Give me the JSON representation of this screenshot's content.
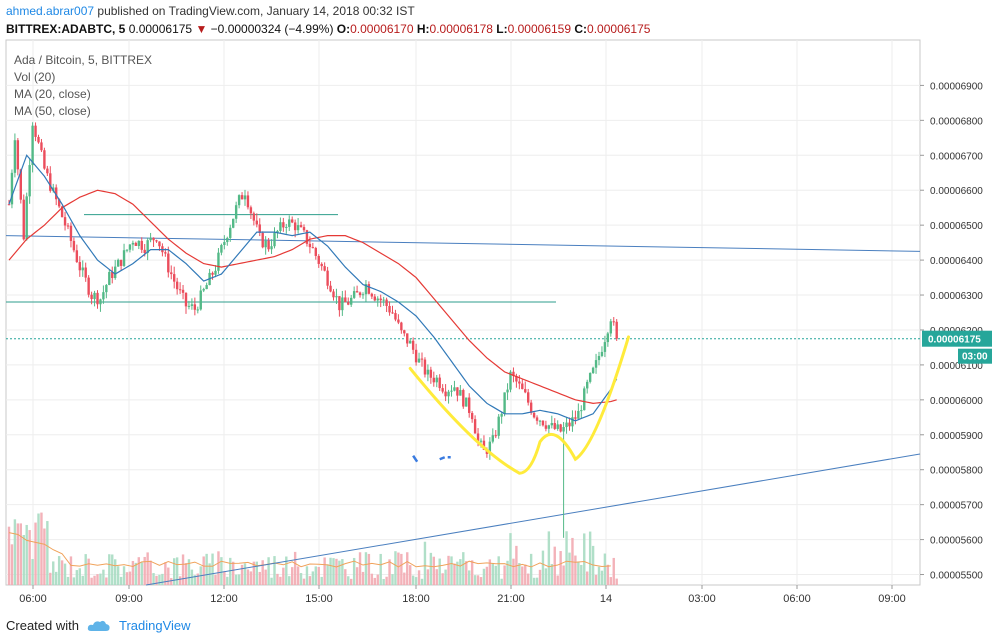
{
  "header": {
    "author": "ahmed.abrar007",
    "published_text": "published on TradingView.com, January 14, 2018 00:32 IST",
    "symbol_line": "BITTREX:ADABTC, 5",
    "last": "0.00006175",
    "change": "−0.00000324 (−4.99%)",
    "open_label": "O:",
    "open": "0.00006170",
    "high_label": "H:",
    "high": "0.00006178",
    "low_label": "L:",
    "low": "0.00006159",
    "close_label": "C:",
    "close": "0.00006175"
  },
  "legend": {
    "title": "Ada / Bitcoin, 5, BITTREX",
    "vol": "Vol (20)",
    "ma20": "MA (20, close)",
    "ma50": "MA (50, close)"
  },
  "footer": {
    "created_with": "Created with",
    "brand": "TradingView"
  },
  "colors": {
    "up": "#53b987",
    "down": "#eb4d5c",
    "ma20": "#3179b8",
    "ma50": "#e53935",
    "annotation": "#ffeb3b",
    "trend": "#4a7fbf",
    "hline": "#2e9e8c",
    "price_tag": "#26a69a"
  },
  "chart_data": {
    "type": "candlestick",
    "y_axis": {
      "ticks": [
        "0.00006900",
        "0.00006800",
        "0.00006700",
        "0.00006600",
        "0.00006500",
        "0.00006400",
        "0.00006300",
        "0.00006200",
        "0.00006100",
        "0.00006000",
        "0.00005900",
        "0.00005800",
        "0.00005700",
        "0.00005600",
        "0.00005500"
      ],
      "range": [
        5.47e-05,
        7.03e-05
      ]
    },
    "x_axis": {
      "ticks": [
        "06:00",
        "09:00",
        "12:00",
        "15:00",
        "18:00",
        "21:00",
        "14",
        "03:00",
        "06:00",
        "09:00"
      ]
    },
    "last_price_label": "0.00006175",
    "countdown_label": "03:00",
    "price_path": [
      [
        0,
        6560
      ],
      [
        2,
        6760
      ],
      [
        5,
        6470
      ],
      [
        8,
        6800
      ],
      [
        12,
        6660
      ],
      [
        16,
        6570
      ],
      [
        20,
        6480
      ],
      [
        24,
        6380
      ],
      [
        28,
        6300
      ],
      [
        31,
        6290
      ],
      [
        34,
        6350
      ],
      [
        38,
        6400
      ],
      [
        42,
        6460
      ],
      [
        46,
        6440
      ],
      [
        50,
        6470
      ],
      [
        54,
        6380
      ],
      [
        57,
        6320
      ],
      [
        60,
        6270
      ],
      [
        63,
        6260
      ],
      [
        66,
        6310
      ],
      [
        70,
        6380
      ],
      [
        74,
        6480
      ],
      [
        78,
        6570
      ],
      [
        80,
        6600
      ],
      [
        82,
        6540
      ],
      [
        85,
        6460
      ],
      [
        88,
        6440
      ],
      [
        91,
        6480
      ],
      [
        94,
        6510
      ],
      [
        97,
        6500
      ],
      [
        100,
        6470
      ],
      [
        103,
        6430
      ],
      [
        106,
        6380
      ],
      [
        109,
        6330
      ],
      [
        112,
        6270
      ],
      [
        115,
        6280
      ],
      [
        118,
        6300
      ],
      [
        121,
        6330
      ],
      [
        124,
        6300
      ],
      [
        127,
        6280
      ],
      [
        130,
        6250
      ],
      [
        133,
        6190
      ],
      [
        136,
        6160
      ],
      [
        139,
        6110
      ],
      [
        142,
        6070
      ],
      [
        145,
        6060
      ],
      [
        148,
        6030
      ],
      [
        151,
        6040
      ],
      [
        154,
        6000
      ],
      [
        157,
        5960
      ],
      [
        159,
        5880
      ],
      [
        161,
        5850
      ],
      [
        164,
        5880
      ],
      [
        167,
        5970
      ],
      [
        170,
        6070
      ],
      [
        172,
        6050
      ],
      [
        175,
        6010
      ],
      [
        178,
        5960
      ],
      [
        181,
        5940
      ],
      [
        184,
        5920
      ],
      [
        187,
        5910
      ],
      [
        190,
        5930
      ],
      [
        193,
        5960
      ],
      [
        196,
        6040
      ],
      [
        199,
        6100
      ],
      [
        202,
        6180
      ],
      [
        204,
        6240
      ],
      [
        206,
        6175
      ]
    ],
    "ma20_path": [
      [
        0,
        6560
      ],
      [
        6,
        6700
      ],
      [
        12,
        6640
      ],
      [
        18,
        6560
      ],
      [
        24,
        6470
      ],
      [
        30,
        6400
      ],
      [
        36,
        6360
      ],
      [
        42,
        6390
      ],
      [
        48,
        6430
      ],
      [
        54,
        6430
      ],
      [
        60,
        6390
      ],
      [
        66,
        6340
      ],
      [
        72,
        6360
      ],
      [
        78,
        6420
      ],
      [
        84,
        6480
      ],
      [
        90,
        6480
      ],
      [
        96,
        6470
      ],
      [
        102,
        6480
      ],
      [
        108,
        6440
      ],
      [
        114,
        6380
      ],
      [
        120,
        6330
      ],
      [
        126,
        6310
      ],
      [
        132,
        6280
      ],
      [
        138,
        6240
      ],
      [
        144,
        6180
      ],
      [
        150,
        6110
      ],
      [
        156,
        6040
      ],
      [
        162,
        5990
      ],
      [
        168,
        5960
      ],
      [
        174,
        5960
      ],
      [
        180,
        5970
      ],
      [
        186,
        5960
      ],
      [
        192,
        5940
      ],
      [
        198,
        5960
      ],
      [
        204,
        6030
      ],
      [
        206,
        6060
      ]
    ],
    "ma50_path": [
      [
        0,
        6400
      ],
      [
        6,
        6460
      ],
      [
        12,
        6500
      ],
      [
        18,
        6550
      ],
      [
        24,
        6580
      ],
      [
        30,
        6600
      ],
      [
        36,
        6590
      ],
      [
        42,
        6560
      ],
      [
        48,
        6510
      ],
      [
        54,
        6460
      ],
      [
        60,
        6420
      ],
      [
        66,
        6390
      ],
      [
        72,
        6380
      ],
      [
        78,
        6390
      ],
      [
        84,
        6400
      ],
      [
        90,
        6410
      ],
      [
        96,
        6430
      ],
      [
        102,
        6460
      ],
      [
        108,
        6470
      ],
      [
        114,
        6470
      ],
      [
        120,
        6450
      ],
      [
        126,
        6420
      ],
      [
        132,
        6390
      ],
      [
        138,
        6350
      ],
      [
        144,
        6290
      ],
      [
        150,
        6230
      ],
      [
        156,
        6170
      ],
      [
        162,
        6120
      ],
      [
        168,
        6080
      ],
      [
        174,
        6060
      ],
      [
        180,
        6040
      ],
      [
        186,
        6020
      ],
      [
        192,
        6000
      ],
      [
        198,
        5990
      ],
      [
        204,
        5995
      ],
      [
        206,
        6000
      ]
    ]
  }
}
